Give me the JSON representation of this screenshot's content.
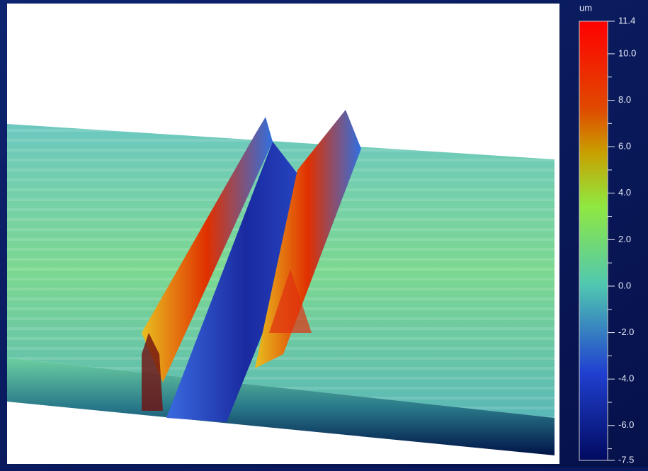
{
  "colorbar": {
    "unit": "um",
    "lim": [
      -7.5,
      11.4
    ],
    "ticks": [
      11.4,
      {
        "value": 10,
        "label": "10.0"
      },
      {
        "value": 8,
        "label": "8.0"
      },
      {
        "value": 6,
        "label": "6.0"
      },
      {
        "value": 4,
        "label": "4.0"
      },
      {
        "value": 2,
        "label": "2.0"
      },
      {
        "value": 0,
        "label": "0.0"
      },
      {
        "value": -2,
        "label": "-2.0"
      },
      {
        "value": -4,
        "label": "-4.0"
      },
      {
        "value": -6,
        "label": "-6.0"
      },
      -7.5
    ],
    "minor_ticks": [
      9,
      7,
      5,
      3,
      1,
      -1,
      -3,
      -5,
      -7
    ]
  }
}
